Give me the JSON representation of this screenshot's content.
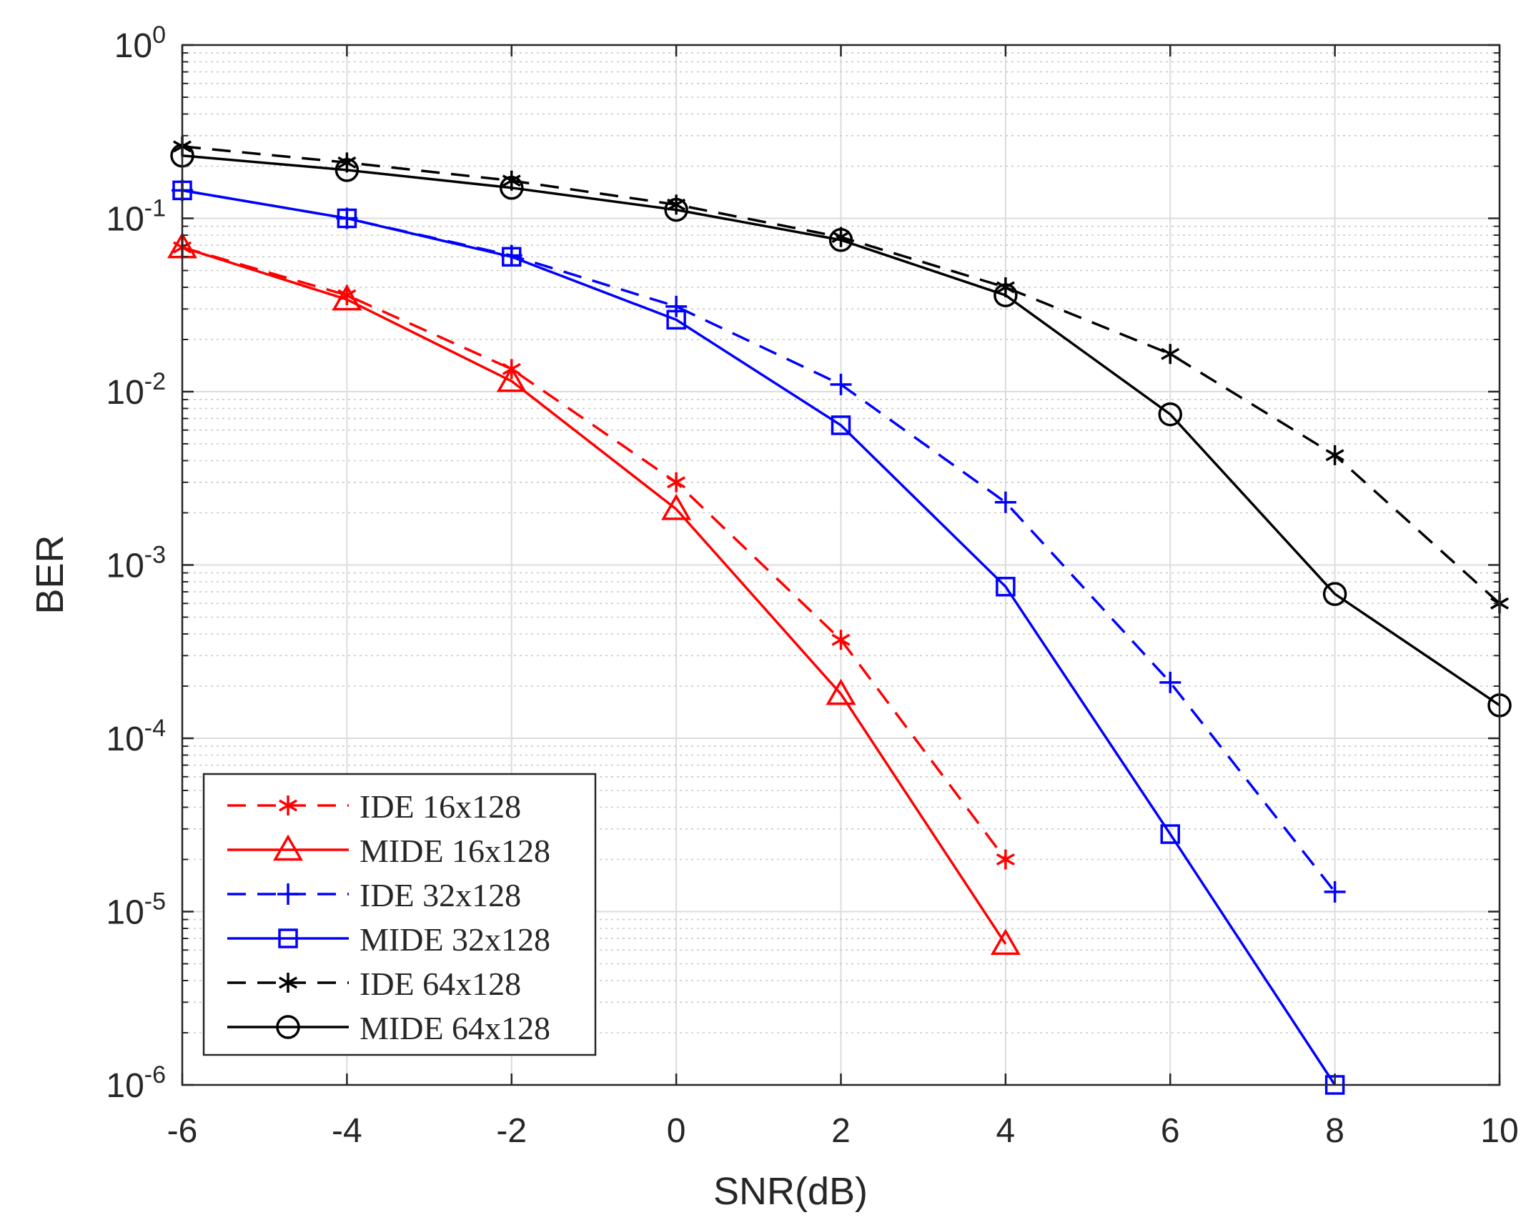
{
  "chart_data": {
    "type": "line",
    "title": "",
    "xlabel": "SNR(dB)",
    "ylabel": "BER",
    "xscale": "linear",
    "yscale": "log",
    "xlim": [
      -6,
      10
    ],
    "ylim": [
      1e-06,
      1
    ],
    "grid": true,
    "minor_grid": true,
    "legend_position": "bottom-left",
    "x_ticks": [
      -6,
      -4,
      -2,
      0,
      2,
      4,
      6,
      8,
      10
    ],
    "x_tick_labels": [
      "-6",
      "-4",
      "-2",
      "0",
      "2",
      "4",
      "6",
      "8",
      "10"
    ],
    "y_ticks": [
      {
        "base": "10",
        "exp": "0",
        "value": 1
      },
      {
        "base": "10",
        "exp": "-1",
        "value": 0.1
      },
      {
        "base": "10",
        "exp": "-2",
        "value": 0.01
      },
      {
        "base": "10",
        "exp": "-3",
        "value": 0.001
      },
      {
        "base": "10",
        "exp": "-4",
        "value": 0.0001
      },
      {
        "base": "10",
        "exp": "-5",
        "value": 1e-05
      },
      {
        "base": "10",
        "exp": "-6",
        "value": 1e-06
      }
    ],
    "series": [
      {
        "name": "IDE 16x128",
        "color": "#ff0000",
        "dash": "dashed",
        "marker": "asterisk",
        "x": [
          -6,
          -4,
          -2,
          0,
          2,
          4
        ],
        "y": [
          0.068,
          0.036,
          0.0135,
          0.003,
          0.00037,
          2e-05
        ]
      },
      {
        "name": "MIDE 16x128",
        "color": "#ff0000",
        "dash": "solid",
        "marker": "triangle",
        "x": [
          -6,
          -4,
          -2,
          0,
          2,
          4
        ],
        "y": [
          0.068,
          0.034,
          0.0115,
          0.0021,
          0.00018,
          6.5e-06
        ]
      },
      {
        "name": "IDE 32x128",
        "color": "#0000ff",
        "dash": "dashed",
        "marker": "plus",
        "x": [
          -6,
          -4,
          -2,
          0,
          2,
          4,
          6,
          8
        ],
        "y": [
          0.145,
          0.1,
          0.061,
          0.031,
          0.011,
          0.0023,
          0.00021,
          1.3e-05
        ]
      },
      {
        "name": "MIDE 32x128",
        "color": "#0000ff",
        "dash": "solid",
        "marker": "square",
        "x": [
          -6,
          -4,
          -2,
          0,
          2,
          4,
          6,
          8
        ],
        "y": [
          0.145,
          0.1,
          0.06,
          0.026,
          0.0064,
          0.00075,
          2.8e-05,
          1e-06
        ]
      },
      {
        "name": "IDE 64x128",
        "color": "#000000",
        "dash": "dashed",
        "marker": "asterisk",
        "x": [
          -6,
          -4,
          -2,
          0,
          2,
          4,
          6,
          8,
          10
        ],
        "y": [
          0.26,
          0.21,
          0.165,
          0.12,
          0.078,
          0.04,
          0.0165,
          0.0043,
          0.0006
        ]
      },
      {
        "name": "MIDE 64x128",
        "color": "#000000",
        "dash": "solid",
        "marker": "circle",
        "x": [
          -6,
          -4,
          -2,
          0,
          2,
          4,
          6,
          8,
          10
        ],
        "y": [
          0.23,
          0.19,
          0.15,
          0.112,
          0.075,
          0.036,
          0.0074,
          0.00068,
          0.000155
        ]
      }
    ]
  }
}
